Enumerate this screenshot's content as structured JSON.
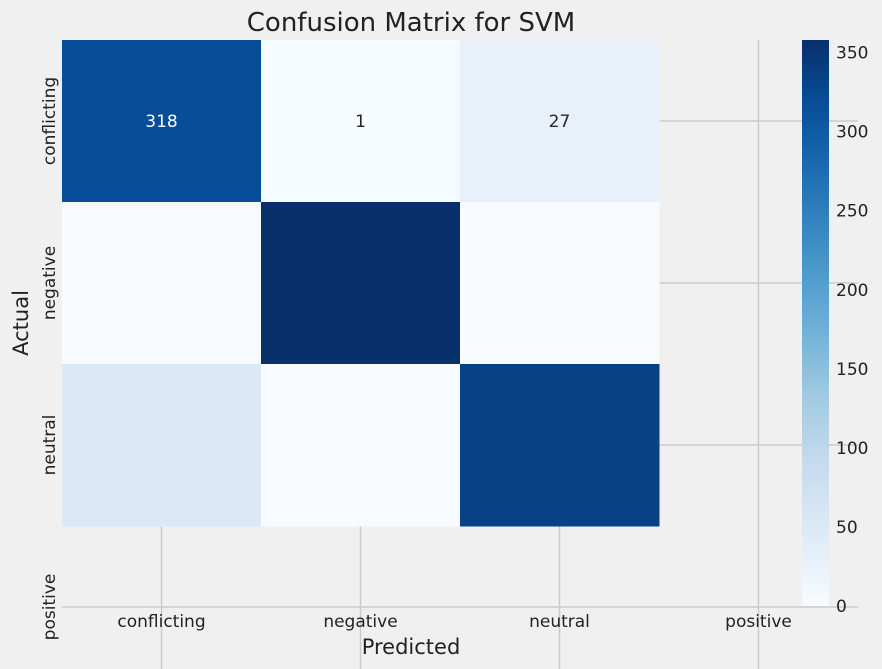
{
  "chart_data": {
    "type": "heatmap",
    "title": "Confusion Matrix for SVM",
    "xlabel": "Predicted",
    "ylabel": "Actual",
    "x_categories": [
      "conflicting",
      "negative",
      "neutral",
      "positive"
    ],
    "y_categories": [
      "conflicting",
      "negative",
      "neutral",
      "positive"
    ],
    "cells": [
      {
        "row": 0,
        "col": 0,
        "value": 318,
        "label": "318"
      },
      {
        "row": 0,
        "col": 1,
        "value": 1,
        "label": "1"
      },
      {
        "row": 0,
        "col": 2,
        "value": 27,
        "label": "27"
      },
      {
        "row": 1,
        "col": 0,
        "value": 0
      },
      {
        "row": 1,
        "col": 1,
        "value": 358
      },
      {
        "row": 1,
        "col": 2,
        "value": 0
      },
      {
        "row": 2,
        "col": 0,
        "value": 50
      },
      {
        "row": 2,
        "col": 1,
        "value": 0
      },
      {
        "row": 2,
        "col": 2,
        "value": 335
      }
    ],
    "colorbar": {
      "min": 0,
      "max": 358,
      "ticks": [
        0,
        50,
        100,
        150,
        200,
        250,
        300,
        350
      ],
      "colormap": "Blues"
    },
    "grid": true,
    "colors": {
      "background": "#f0f0f0",
      "grid": "#cbcbcb",
      "low": "#f7fbff",
      "high": "#08306b"
    }
  }
}
